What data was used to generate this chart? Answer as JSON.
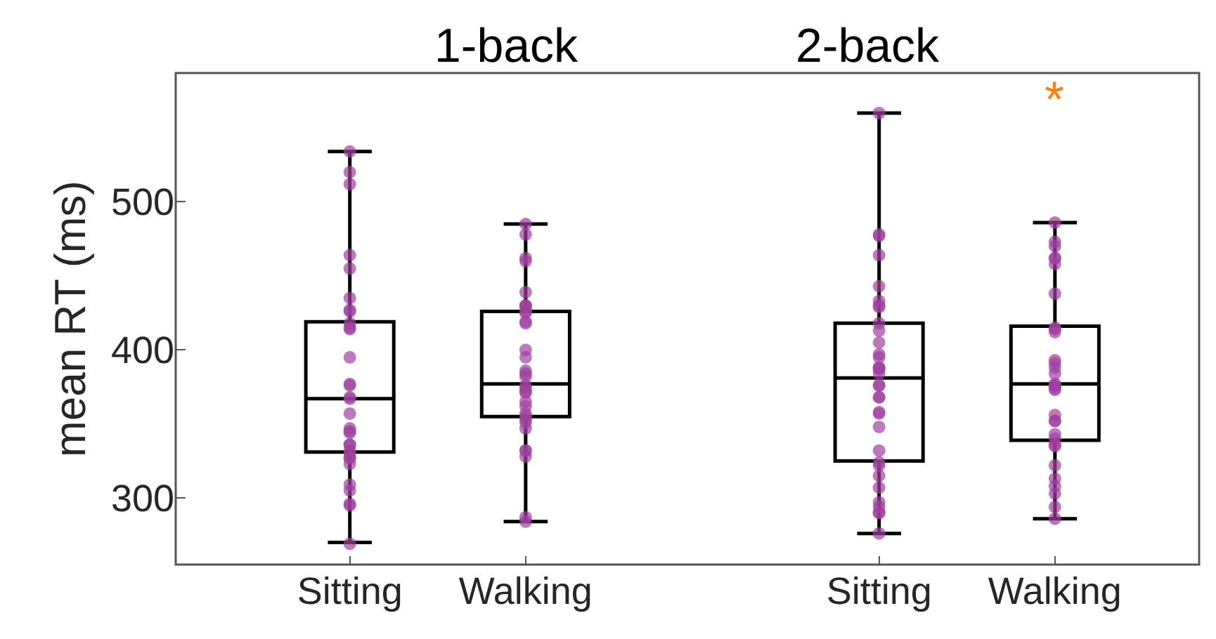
{
  "chart_data": [
    {
      "type": "box",
      "title": "1-back",
      "ylabel": "mean RT (ms)",
      "categories": [
        "Sitting",
        "Walking"
      ],
      "ylim": [
        255,
        587
      ],
      "yticks": [
        300,
        400,
        500
      ],
      "series": [
        {
          "color": "#000000",
          "boxes": [
            {
              "low": 270,
              "q1": 331,
              "median": 367,
              "q3": 419,
              "high": 534
            },
            {
              "low": 284,
              "q1": 355,
              "median": 377,
              "q3": 426,
              "high": 485
            }
          ]
        },
        {
          "type": "scatter",
          "color": "#a040a0",
          "marker": "circle",
          "x": [
            "Sitting",
            "Sitting",
            "Sitting",
            "Sitting",
            "Sitting",
            "Sitting",
            "Sitting",
            "Sitting",
            "Sitting",
            "Sitting",
            "Sitting",
            "Sitting",
            "Sitting",
            "Sitting",
            "Sitting",
            "Sitting",
            "Sitting",
            "Sitting",
            "Sitting",
            "Sitting",
            "Sitting",
            "Sitting",
            "Sitting",
            "Sitting",
            "Sitting",
            "Sitting",
            "Sitting",
            "Sitting",
            "Sitting",
            "Sitting",
            "Sitting",
            "Sitting",
            "Walking",
            "Walking",
            "Walking",
            "Walking",
            "Walking",
            "Walking",
            "Walking",
            "Walking",
            "Walking",
            "Walking",
            "Walking",
            "Walking",
            "Walking",
            "Walking",
            "Walking",
            "Walking",
            "Walking",
            "Walking",
            "Walking",
            "Walking",
            "Walking",
            "Walking",
            "Walking",
            "Walking",
            "Walking",
            "Walking",
            "Walking",
            "Walking",
            "Walking",
            "Walking",
            "Walking",
            "Walking",
            "Walking"
          ],
          "values": [
            534,
            520,
            512,
            464,
            455,
            435,
            427,
            426,
            418,
            415,
            414,
            395,
            376,
            377,
            367,
            368,
            357,
            347,
            345,
            344,
            336,
            336,
            332,
            330,
            327,
            327,
            323,
            309,
            305,
            295,
            296,
            269,
            485,
            478,
            462,
            460,
            439,
            430,
            426,
            425,
            430,
            429,
            418,
            419,
            400,
            395,
            386,
            382,
            384,
            376,
            374,
            372,
            371,
            365,
            362,
            357,
            355,
            353,
            351,
            347,
            332,
            332,
            328,
            287,
            284
          ]
        }
      ]
    },
    {
      "type": "box",
      "title": "2-back",
      "categories": [
        "Sitting",
        "Walking"
      ],
      "ylim": [
        255,
        587
      ],
      "yticks": [
        300,
        400,
        500
      ],
      "tick_labels": "x",
      "annotations": [
        "*"
      ],
      "series": [
        {
          "color": "#000000",
          "boxes": [
            {
              "low": 276,
              "q1": 325,
              "median": 381,
              "q3": 418,
              "high": 560
            },
            {
              "low": 286,
              "q1": 339,
              "median": 377,
              "q3": 416,
              "high": 486
            }
          ]
        },
        {
          "type": "scatter",
          "color": "#a040a0",
          "marker": "circle",
          "x": [
            "Sitting",
            "Sitting",
            "Sitting",
            "Sitting",
            "Sitting",
            "Sitting",
            "Sitting",
            "Sitting",
            "Sitting",
            "Sitting",
            "Sitting",
            "Sitting",
            "Sitting",
            "Sitting",
            "Sitting",
            "Sitting",
            "Sitting",
            "Sitting",
            "Sitting",
            "Sitting",
            "Sitting",
            "Sitting",
            "Sitting",
            "Sitting",
            "Sitting",
            "Sitting",
            "Sitting",
            "Sitting",
            "Sitting",
            "Sitting",
            "Sitting",
            "Sitting",
            "Sitting",
            "Sitting",
            "Walking",
            "Walking",
            "Walking",
            "Walking",
            "Walking",
            "Walking",
            "Walking",
            "Walking",
            "Walking",
            "Walking",
            "Walking",
            "Walking",
            "Walking",
            "Walking",
            "Walking",
            "Walking",
            "Walking",
            "Walking",
            "Walking",
            "Walking",
            "Walking",
            "Walking",
            "Walking",
            "Walking",
            "Walking",
            "Walking",
            "Walking",
            "Walking",
            "Walking",
            "Walking",
            "Walking",
            "Walking"
          ],
          "values": [
            560,
            478,
            477,
            464,
            443,
            430,
            433,
            429,
            418,
            413,
            405,
            395,
            388,
            387,
            397,
            388,
            384,
            376,
            376,
            368,
            368,
            357,
            358,
            348,
            332,
            324,
            322,
            315,
            307,
            297,
            294,
            290,
            290,
            276,
            486,
            473,
            470,
            462,
            458,
            462,
            438,
            414,
            415,
            412,
            393,
            391,
            388,
            384,
            377,
            376,
            374,
            376,
            373,
            356,
            352,
            352,
            343,
            340,
            336,
            335,
            322,
            313,
            308,
            303,
            294,
            286
          ]
        }
      ]
    }
  ]
}
